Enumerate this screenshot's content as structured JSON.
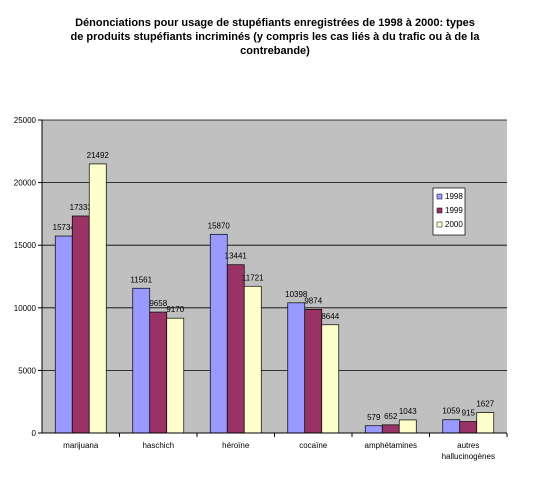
{
  "chart_data": {
    "type": "bar",
    "title": "Dénonciations pour usage de stupéfiants enregistrées de 1998 à 2000: types de produits stupéfiants incriminés (y compris les cas liés à du trafic ou à de la contrebande)",
    "categories": [
      "marijuana",
      "haschich",
      "héroïne",
      "cocaïne",
      "amphétamines",
      "autres hallucinogènes"
    ],
    "series": [
      {
        "name": "1998",
        "color": "#9999ff",
        "values": [
          15734,
          11561,
          15870,
          10398,
          579,
          1059
        ]
      },
      {
        "name": "1999",
        "color": "#993366",
        "values": [
          17333,
          9658,
          13441,
          9874,
          652,
          915
        ]
      },
      {
        "name": "2000",
        "color": "#ffffcc",
        "values": [
          21492,
          9170,
          11721,
          8644,
          1043,
          1627
        ]
      }
    ],
    "ylim": [
      0,
      25000
    ],
    "yticks": [
      0,
      5000,
      10000,
      15000,
      20000,
      25000
    ],
    "grid": true,
    "legend": "right"
  }
}
